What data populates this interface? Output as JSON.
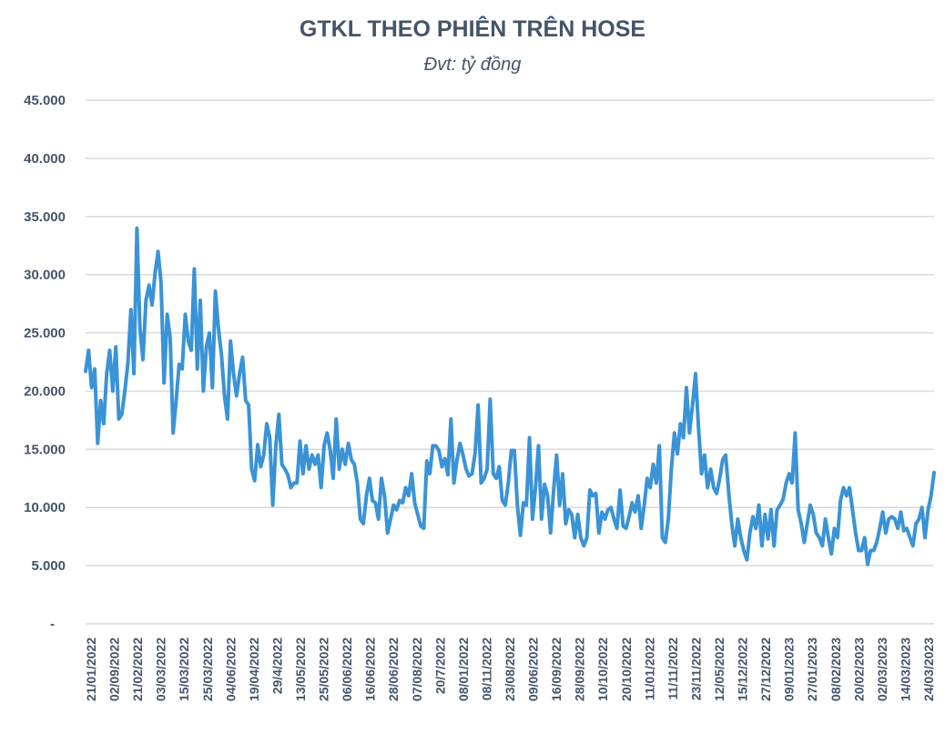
{
  "chart_data": {
    "type": "line",
    "title": "GTKL THEO PHIÊN TRÊN HOSE",
    "subtitle": "Đvt: tỷ đồng",
    "xlabel": "",
    "ylabel": "",
    "ylim": [
      0,
      45000
    ],
    "grid": true,
    "color": "#3a93d6",
    "y_ticks": [
      "-",
      "5.000",
      "10.000",
      "15.000",
      "20.000",
      "25.000",
      "30.000",
      "35.000",
      "40.000",
      "45.000"
    ],
    "x_ticks": [
      "21/01/2022",
      "02/09/2022",
      "21/02/2022",
      "03/03/2022",
      "15/03/2022",
      "25/03/2022",
      "04/06/2022",
      "19/04/2022",
      "29/4/2022",
      "13/05/2022",
      "25/05/2022",
      "06/06/2022",
      "16/06/2022",
      "28/06/2022",
      "07/08/2022",
      "20/7/2022",
      "08/01/2022",
      "08/11/2022",
      "23/08/2022",
      "09/06/2022",
      "16/09/2022",
      "28/09/2022",
      "10/10/2022",
      "20/10/2022",
      "11/01/2022",
      "11/11/2022",
      "23/11/2022",
      "12/05/2022",
      "15/12/2022",
      "27/12/2022",
      "09/01/2023",
      "27/01/2023",
      "08/02/2023",
      "20/02/2023",
      "02/03/2023",
      "14/03/2023",
      "24/03/2023"
    ],
    "series": [
      {
        "name": "GTKL",
        "values": [
          21700,
          23500,
          20300,
          21900,
          15500,
          19200,
          17200,
          21500,
          23500,
          20000,
          23800,
          17600,
          18000,
          20000,
          22300,
          27000,
          21500,
          34000,
          25400,
          22700,
          27800,
          29100,
          27400,
          30100,
          32000,
          29300,
          20700,
          26600,
          24600,
          16400,
          19200,
          22300,
          21900,
          26600,
          24300,
          23500,
          30500,
          21900,
          27800,
          20000,
          23800,
          25000,
          20300,
          28600,
          25400,
          23100,
          19600,
          17600,
          24300,
          21500,
          19600,
          21500,
          22900,
          19200,
          18800,
          13300,
          12300,
          15400,
          13500,
          14500,
          17200,
          16000,
          10200,
          15300,
          18000,
          13700,
          13300,
          12800,
          11700,
          12100,
          12100,
          15700,
          12900,
          15300,
          13300,
          14500,
          13700,
          14500,
          11700,
          15300,
          16400,
          14900,
          12500,
          17600,
          13300,
          15000,
          13700,
          15500,
          14100,
          13700,
          12100,
          9000,
          8600,
          11000,
          12500,
          10600,
          10400,
          9000,
          12500,
          11000,
          7800,
          9000,
          10200,
          9800,
          10600,
          10400,
          11700,
          11000,
          12900,
          10400,
          9400,
          8400,
          8200,
          14000,
          12900,
          15300,
          15300,
          14900,
          13500,
          14200,
          12800,
          17600,
          12100,
          14100,
          15500,
          14500,
          13300,
          12700,
          12900,
          14700,
          18800,
          12100,
          12500,
          13300,
          19300,
          12900,
          12500,
          13500,
          10600,
          10200,
          12100,
          14900,
          14900,
          10200,
          7600,
          10400,
          10200,
          16000,
          9000,
          11700,
          15300,
          9000,
          12000,
          11000,
          7800,
          11500,
          14500,
          10200,
          12900,
          8600,
          9800,
          9400,
          7400,
          9400,
          7400,
          6700,
          7400,
          11500,
          11000,
          11200,
          7800,
          9600,
          9000,
          9800,
          10000,
          9000,
          8200,
          11500,
          8400,
          8200,
          9200,
          10400,
          9600,
          11000,
          8200,
          10200,
          12500,
          11700,
          13700,
          12100,
          15300,
          7400,
          7000,
          9000,
          13300,
          16400,
          14600,
          17200,
          16000,
          20300,
          16400,
          18800,
          21500,
          16800,
          12900,
          14500,
          11700,
          13300,
          11700,
          11200,
          12500,
          14100,
          14500,
          11200,
          8600,
          6700,
          9000,
          7400,
          6300,
          5500,
          7800,
          9200,
          8200,
          10200,
          6700,
          9400,
          7300,
          9800,
          6700,
          9800,
          10200,
          10700,
          12100,
          12900,
          12100,
          16400,
          9800,
          8600,
          7000,
          8600,
          10200,
          9400,
          7800,
          7400,
          6700,
          9000,
          7400,
          6000,
          8200,
          7400,
          10600,
          11700,
          11000,
          11700,
          9800,
          7800,
          6300,
          6300,
          7400,
          5100,
          6300,
          6300,
          7000,
          8200,
          9600,
          7800,
          9000,
          9200,
          9000,
          8200,
          9600,
          8000,
          8200,
          7400,
          6700,
          8600,
          9000,
          10000,
          7400,
          9800,
          11000,
          13000
        ]
      }
    ]
  }
}
